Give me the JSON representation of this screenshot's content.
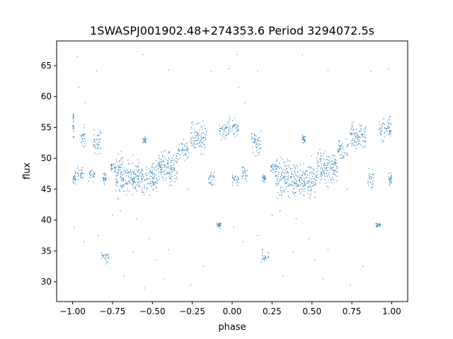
{
  "chart_data": {
    "type": "scatter",
    "title": "1SWASPJ001902.48+274353.6 Period 3294072.5s",
    "xlabel": "phase",
    "ylabel": "flux",
    "xlim": [
      -1.1,
      1.1
    ],
    "ylim": [
      26.8,
      69.0
    ],
    "xticks": [
      -1.0,
      -0.75,
      -0.5,
      -0.25,
      0.0,
      0.25,
      0.5,
      0.75,
      1.0
    ],
    "xtick_labels": [
      "−1.00",
      "−0.75",
      "−0.50",
      "−0.25",
      "0.00",
      "0.25",
      "0.50",
      "0.75",
      "1.00"
    ],
    "yticks": [
      30,
      35,
      40,
      45,
      50,
      55,
      60,
      65
    ],
    "ytick_labels": [
      "30",
      "35",
      "40",
      "45",
      "50",
      "55",
      "60",
      "65"
    ],
    "grid": false,
    "marker_color": "#1f77b4",
    "phase_folded": true,
    "clusters": [
      {
        "x": [
          -1.0,
          -0.99
        ],
        "y": [
          50,
          58
        ],
        "center": [
          -0.995,
          55.5
        ]
      },
      {
        "x": [
          -1.0,
          -0.98
        ],
        "y": [
          45,
          48.5
        ],
        "center": [
          -0.99,
          46.8
        ]
      },
      {
        "x": [
          -0.97,
          -0.93
        ],
        "y": [
          46,
          49
        ],
        "center": [
          -0.95,
          47.5
        ]
      },
      {
        "x": [
          -0.95,
          -0.92
        ],
        "y": [
          51,
          56
        ],
        "center": [
          -0.94,
          53.5
        ]
      },
      {
        "x": [
          -0.9,
          -0.86
        ],
        "y": [
          45.5,
          48.5
        ],
        "center": [
          -0.88,
          47.2
        ]
      },
      {
        "x": [
          -0.87,
          -0.82
        ],
        "y": [
          50,
          56
        ],
        "center": [
          -0.845,
          52.8
        ]
      },
      {
        "x": [
          -0.81,
          -0.79
        ],
        "y": [
          45.5,
          48
        ],
        "center": [
          -0.8,
          46.8
        ]
      },
      {
        "x": [
          -0.82,
          -0.77
        ],
        "y": [
          32.5,
          35.5
        ],
        "center": [
          -0.79,
          34.0
        ]
      },
      {
        "x": [
          -0.76,
          -0.73
        ],
        "y": [
          47,
          50
        ],
        "center": [
          -0.745,
          48.5
        ]
      },
      {
        "x": [
          -0.73,
          -0.6
        ],
        "y": [
          43,
          52
        ],
        "center": [
          -0.67,
          47.0
        ]
      },
      {
        "x": [
          -0.6,
          -0.47
        ],
        "y": [
          43,
          51
        ],
        "center": [
          -0.53,
          46.5
        ]
      },
      {
        "x": [
          -0.56,
          -0.54
        ],
        "y": [
          52,
          54
        ],
        "center": [
          -0.55,
          53.0
        ]
      },
      {
        "x": [
          -0.47,
          -0.34
        ],
        "y": [
          45,
          53
        ],
        "center": [
          -0.41,
          48.5
        ]
      },
      {
        "x": [
          -0.34,
          -0.27
        ],
        "y": [
          49,
          54
        ],
        "center": [
          -0.3,
          51.5
        ]
      },
      {
        "x": [
          -0.26,
          -0.16
        ],
        "y": [
          50,
          57
        ],
        "center": [
          -0.21,
          53.5
        ]
      },
      {
        "x": [
          -0.15,
          -0.11
        ],
        "y": [
          44,
          49
        ],
        "center": [
          -0.13,
          46.8
        ]
      },
      {
        "x": [
          -0.1,
          -0.07
        ],
        "y": [
          38.5,
          40
        ],
        "center": [
          -0.085,
          39.2
        ]
      },
      {
        "x": [
          -0.08,
          -0.02
        ],
        "y": [
          52,
          57
        ],
        "center": [
          -0.05,
          54.6
        ]
      },
      {
        "x": [
          -0.02,
          0.04
        ],
        "y": [
          52,
          57
        ],
        "center": [
          0.01,
          55.0
        ]
      },
      {
        "x": [
          0.0,
          0.04
        ],
        "y": [
          45.5,
          48
        ],
        "center": [
          0.01,
          46.6
        ]
      },
      {
        "x": [
          0.06,
          0.1
        ],
        "y": [
          45.5,
          49
        ],
        "center": [
          0.08,
          47.4
        ]
      },
      {
        "x": [
          0.12,
          0.18
        ],
        "y": [
          50,
          56
        ],
        "center": [
          0.15,
          52.8
        ]
      },
      {
        "x": [
          0.19,
          0.21
        ],
        "y": [
          45.5,
          48
        ],
        "center": [
          0.2,
          46.8
        ]
      },
      {
        "x": [
          0.18,
          0.23
        ],
        "y": [
          32.5,
          35.5
        ],
        "center": [
          0.21,
          34.0
        ]
      },
      {
        "x": [
          0.24,
          0.28
        ],
        "y": [
          46.5,
          50
        ],
        "center": [
          0.26,
          48.4
        ]
      },
      {
        "x": [
          0.27,
          0.4
        ],
        "y": [
          43,
          52
        ],
        "center": [
          0.33,
          47.0
        ]
      },
      {
        "x": [
          0.4,
          0.53
        ],
        "y": [
          43,
          51
        ],
        "center": [
          0.47,
          46.5
        ]
      },
      {
        "x": [
          0.44,
          0.46
        ],
        "y": [
          52,
          54
        ],
        "center": [
          0.45,
          53.0
        ]
      },
      {
        "x": [
          0.53,
          0.66
        ],
        "y": [
          45,
          53
        ],
        "center": [
          0.59,
          48.5
        ]
      },
      {
        "x": [
          0.66,
          0.73
        ],
        "y": [
          49,
          54
        ],
        "center": [
          0.7,
          51.5
        ]
      },
      {
        "x": [
          0.74,
          0.84
        ],
        "y": [
          50,
          57
        ],
        "center": [
          0.79,
          53.5
        ]
      },
      {
        "x": [
          0.85,
          0.89
        ],
        "y": [
          44,
          49
        ],
        "center": [
          0.87,
          46.8
        ]
      },
      {
        "x": [
          0.9,
          0.93
        ],
        "y": [
          38.5,
          40
        ],
        "center": [
          0.915,
          39.2
        ]
      },
      {
        "x": [
          0.92,
          0.98
        ],
        "y": [
          52,
          57
        ],
        "center": [
          0.95,
          54.6
        ]
      },
      {
        "x": [
          0.98,
          1.0
        ],
        "y": [
          50,
          57
        ],
        "center": [
          0.99,
          55.0
        ]
      },
      {
        "x": [
          0.98,
          1.0
        ],
        "y": [
          45,
          48.5
        ],
        "center": [
          0.99,
          46.6
        ]
      }
    ],
    "outliers": [
      [
        -0.97,
        66.5
      ],
      [
        -0.85,
        64.2
      ],
      [
        -0.56,
        66.8
      ],
      [
        -0.4,
        64.3
      ],
      [
        -0.13,
        64.1
      ],
      [
        -0.02,
        64.5
      ],
      [
        -0.84,
        37.5
      ],
      [
        -0.75,
        40.8
      ],
      [
        -0.68,
        31.0
      ],
      [
        -0.62,
        34.8
      ],
      [
        -0.55,
        29.0
      ],
      [
        -0.48,
        33.5
      ],
      [
        -0.43,
        30.5
      ],
      [
        -0.4,
        35.2
      ],
      [
        -0.26,
        29.5
      ],
      [
        -0.18,
        32.5
      ],
      [
        -0.99,
        38.8
      ],
      [
        -0.93,
        36.5
      ],
      [
        0.03,
        66.8
      ],
      [
        0.16,
        64.2
      ],
      [
        0.44,
        66.8
      ],
      [
        0.6,
        64.3
      ],
      [
        0.87,
        64.1
      ],
      [
        0.98,
        64.5
      ],
      [
        0.16,
        37.5
      ],
      [
        0.25,
        40.8
      ],
      [
        0.32,
        31.0
      ],
      [
        0.38,
        34.8
      ],
      [
        0.45,
        29.0
      ],
      [
        0.52,
        33.5
      ],
      [
        0.57,
        30.5
      ],
      [
        0.6,
        35.2
      ],
      [
        0.74,
        29.5
      ],
      [
        0.82,
        32.5
      ],
      [
        0.01,
        38.8
      ],
      [
        0.07,
        36.5
      ],
      [
        -0.7,
        41.5
      ],
      [
        -0.6,
        40.2
      ],
      [
        -0.52,
        37.0
      ],
      [
        0.3,
        41.5
      ],
      [
        0.4,
        40.2
      ],
      [
        0.48,
        37.0
      ],
      [
        -0.28,
        45.0
      ],
      [
        0.72,
        45.0
      ],
      [
        -0.92,
        59.0
      ],
      [
        0.08,
        59.0
      ],
      [
        -0.96,
        61.5
      ],
      [
        0.04,
        61.5
      ]
    ]
  }
}
